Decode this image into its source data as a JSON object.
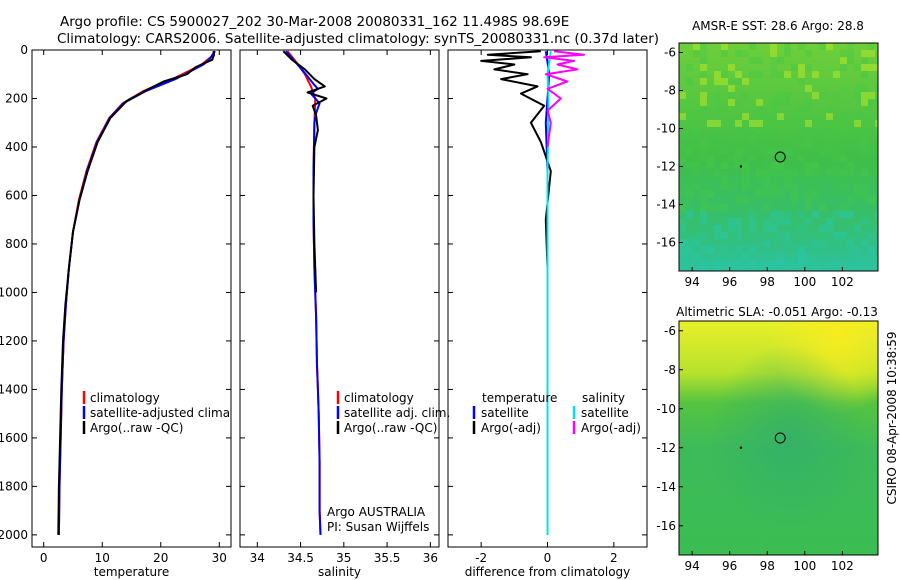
{
  "figure": {
    "title_line1": "Argo profile: CS 5900027_202 30-Mar-2008 20080331_162 11.498S 98.69E",
    "title_line2": "Climatology: CARS2006. Satellite-adjusted climatology: synTS_20080331.nc (0.37d later)",
    "side_label": "CSIRO 08-Apr-2008 10:38:59",
    "colors": {
      "climatology": "#ff0000",
      "satellite": "#0000ff",
      "argo": "#000000",
      "satellite_salinity": "#00e5e5",
      "argo_salinity_adj": "#ff00ff"
    }
  },
  "chart_data": [
    {
      "type": "line",
      "id": "temperature",
      "xlabel": "temperature",
      "ylabel": "",
      "xlim": [
        -2,
        32
      ],
      "ylim": [
        2050,
        0
      ],
      "y_reversed": true,
      "xticks": [
        0,
        10,
        20,
        30
      ],
      "yticks": [
        0,
        200,
        400,
        600,
        800,
        1000,
        1200,
        1400,
        1600,
        1800,
        2000
      ],
      "legend_placement": "lower-center",
      "series": [
        {
          "name": "climatology",
          "color": "#ff0000",
          "x": [
            29.3,
            28.5,
            27.0,
            22.0,
            17.0,
            13.5,
            11.2,
            9.0,
            7.3,
            6.0,
            5.0,
            4.3,
            3.8,
            3.4,
            3.1,
            2.9,
            2.7,
            2.6
          ],
          "y": [
            5,
            30,
            60,
            120,
            170,
            220,
            280,
            380,
            500,
            620,
            750,
            900,
            1050,
            1200,
            1400,
            1600,
            1800,
            2000
          ]
        },
        {
          "name": "satellite-adjusted climatology",
          "color": "#0000ff",
          "x": [
            29.2,
            28.6,
            27.3,
            22.5,
            17.4,
            13.6,
            11.3,
            9.1,
            7.4,
            6.1,
            5.0,
            4.3,
            3.8,
            3.4,
            3.1,
            2.9,
            2.7,
            2.6
          ],
          "y": [
            5,
            30,
            60,
            120,
            170,
            220,
            280,
            380,
            500,
            620,
            750,
            900,
            1050,
            1200,
            1400,
            1600,
            1800,
            2000
          ]
        },
        {
          "name": "Argo(..raw -QC)",
          "color": "#000000",
          "x": [
            29.0,
            29.1,
            28.8,
            26.0,
            24.5,
            20.5,
            18.0,
            14.2,
            11.4,
            9.2,
            7.5,
            6.1,
            5.0,
            4.3,
            3.7,
            3.3,
            3.0,
            2.8,
            2.6,
            2.5
          ],
          "y": [
            5,
            20,
            40,
            70,
            100,
            130,
            160,
            210,
            280,
            380,
            500,
            620,
            750,
            900,
            1050,
            1200,
            1400,
            1600,
            1800,
            2000
          ]
        }
      ]
    },
    {
      "type": "line",
      "id": "salinity",
      "xlabel": "salinity",
      "ylabel": "",
      "xlim": [
        33.8,
        36.1
      ],
      "ylim": [
        2050,
        0
      ],
      "y_reversed": true,
      "xticks": [
        34,
        34.5,
        35,
        35.5,
        36
      ],
      "legend_placement": "lower-right",
      "series": [
        {
          "name": "climatology",
          "color": "#ff0000",
          "x": [
            34.35,
            34.45,
            34.55,
            34.62,
            34.67,
            34.66,
            34.65,
            34.65,
            34.66,
            34.68,
            34.69,
            34.7,
            34.71,
            34.72,
            34.72,
            34.73
          ],
          "y": [
            5,
            50,
            100,
            150,
            200,
            300,
            500,
            700,
            900,
            1100,
            1300,
            1400,
            1500,
            1700,
            1900,
            2000
          ]
        },
        {
          "name": "satellite adj. clim.",
          "color": "#0000ff",
          "x": [
            34.33,
            34.44,
            34.56,
            34.65,
            34.7,
            34.62,
            34.72,
            34.68,
            34.66,
            34.65,
            34.65,
            34.66,
            34.68,
            34.69,
            34.7,
            34.71,
            34.72,
            34.72,
            34.73
          ],
          "y": [
            5,
            50,
            100,
            140,
            160,
            180,
            220,
            260,
            300,
            500,
            700,
            900,
            1100,
            1300,
            1400,
            1500,
            1700,
            1900,
            2000
          ]
        },
        {
          "name": "Argo(..raw -QC)",
          "color": "#000000",
          "x": [
            34.3,
            34.4,
            34.55,
            34.66,
            34.78,
            34.58,
            34.8,
            34.64,
            34.68,
            34.7,
            34.66,
            34.65,
            34.66,
            34.68
          ],
          "y": [
            5,
            40,
            80,
            120,
            150,
            175,
            200,
            230,
            270,
            330,
            400,
            600,
            800,
            1000
          ]
        }
      ]
    },
    {
      "type": "line",
      "id": "difference",
      "xlabel": "difference from climatology",
      "ylabel": "",
      "xlim": [
        -3,
        3
      ],
      "ylim": [
        2050,
        0
      ],
      "y_reversed": true,
      "xticks": [
        -2,
        0,
        2
      ],
      "legend_placement": "lower-center",
      "legend_group_titles": [
        "temperature",
        "salinity"
      ],
      "series": [
        {
          "name": "satellite",
          "group": "temperature",
          "color": "#0000ff",
          "x": [
            -0.05,
            0.0,
            0.05,
            0.0,
            -0.05,
            0.0,
            0.0,
            0.0,
            0.0,
            0.0,
            0.0
          ],
          "y": [
            5,
            50,
            100,
            200,
            300,
            500,
            800,
            1100,
            1400,
            1700,
            2000
          ]
        },
        {
          "name": "Argo(-adj)",
          "group": "temperature",
          "color": "#000000",
          "x": [
            -0.2,
            -1.8,
            -0.5,
            -2.0,
            -1.0,
            -1.6,
            -0.6,
            -1.4,
            -0.3,
            -0.8,
            -0.1,
            -0.5,
            -0.2,
            0.1,
            -0.05,
            0.0
          ],
          "y": [
            5,
            20,
            30,
            45,
            60,
            80,
            100,
            120,
            150,
            180,
            230,
            300,
            380,
            500,
            700,
            900
          ]
        },
        {
          "name": "satellite",
          "group": "salinity",
          "color": "#00e5e5",
          "x": [
            0.1,
            0.0,
            0.03,
            0.0,
            0.0,
            0.0,
            0.0
          ],
          "y": [
            5,
            100,
            200,
            500,
            1000,
            1500,
            2000
          ]
        },
        {
          "name": "Argo(-adj)",
          "group": "salinity",
          "color": "#ff00ff",
          "x": [
            0.2,
            1.1,
            -0.1,
            0.8,
            0.3,
            0.9,
            -0.05,
            0.6,
            0.0,
            0.4,
            0.0,
            0.1,
            0.0
          ],
          "y": [
            5,
            20,
            30,
            45,
            60,
            80,
            100,
            130,
            160,
            200,
            250,
            300,
            400
          ]
        }
      ]
    },
    {
      "type": "heatmap",
      "id": "sst_map",
      "title": "AMSR-E SST: 28.6  Argo: 28.8",
      "xlim": [
        93.3,
        103.9
      ],
      "ylim": [
        -17.5,
        -5.5
      ],
      "xticks": [
        94,
        96,
        98,
        100,
        102
      ],
      "xtick_labels": [
        "94",
        "96",
        "98",
        "100",
        "102"
      ],
      "yticks": [
        -6,
        -8,
        -10,
        -12,
        -14,
        -16
      ],
      "ytick_labels": [
        "-6",
        "-8",
        "-10",
        "-12",
        "-14",
        "-16"
      ],
      "float_position": [
        98.69,
        -11.5
      ]
    },
    {
      "type": "heatmap",
      "id": "sla_map",
      "title": "Altimetric SLA: -0.051  Argo: -0.13",
      "xlim": [
        93.3,
        103.9
      ],
      "ylim": [
        -17.5,
        -5.5
      ],
      "xticks": [
        94,
        96,
        98,
        100,
        102
      ],
      "xtick_labels": [
        "94",
        "96",
        "98",
        "100",
        "102"
      ],
      "yticks": [
        -6,
        -8,
        -10,
        -12,
        -14,
        -16
      ],
      "ytick_labels": [
        "-6",
        "-8",
        "-10",
        "-12",
        "-14",
        "-16"
      ],
      "float_position": [
        98.69,
        -11.5
      ]
    }
  ],
  "legends": {
    "temperature": [
      "climatology",
      "satellite-adjusted climatology",
      "Argo(..raw -QC)"
    ],
    "salinity": [
      "climatology",
      "satellite adj. clim.",
      "Argo(..raw -QC)"
    ],
    "difference": {
      "left_title": "temperature",
      "right_title": "salinity",
      "left": [
        "satellite",
        "Argo(-adj)"
      ],
      "right": [
        "satellite",
        "Argo(-adj)"
      ]
    }
  },
  "annotation": {
    "line1": "Argo AUSTRALIA",
    "line2": "PI: Susan Wijffels"
  }
}
